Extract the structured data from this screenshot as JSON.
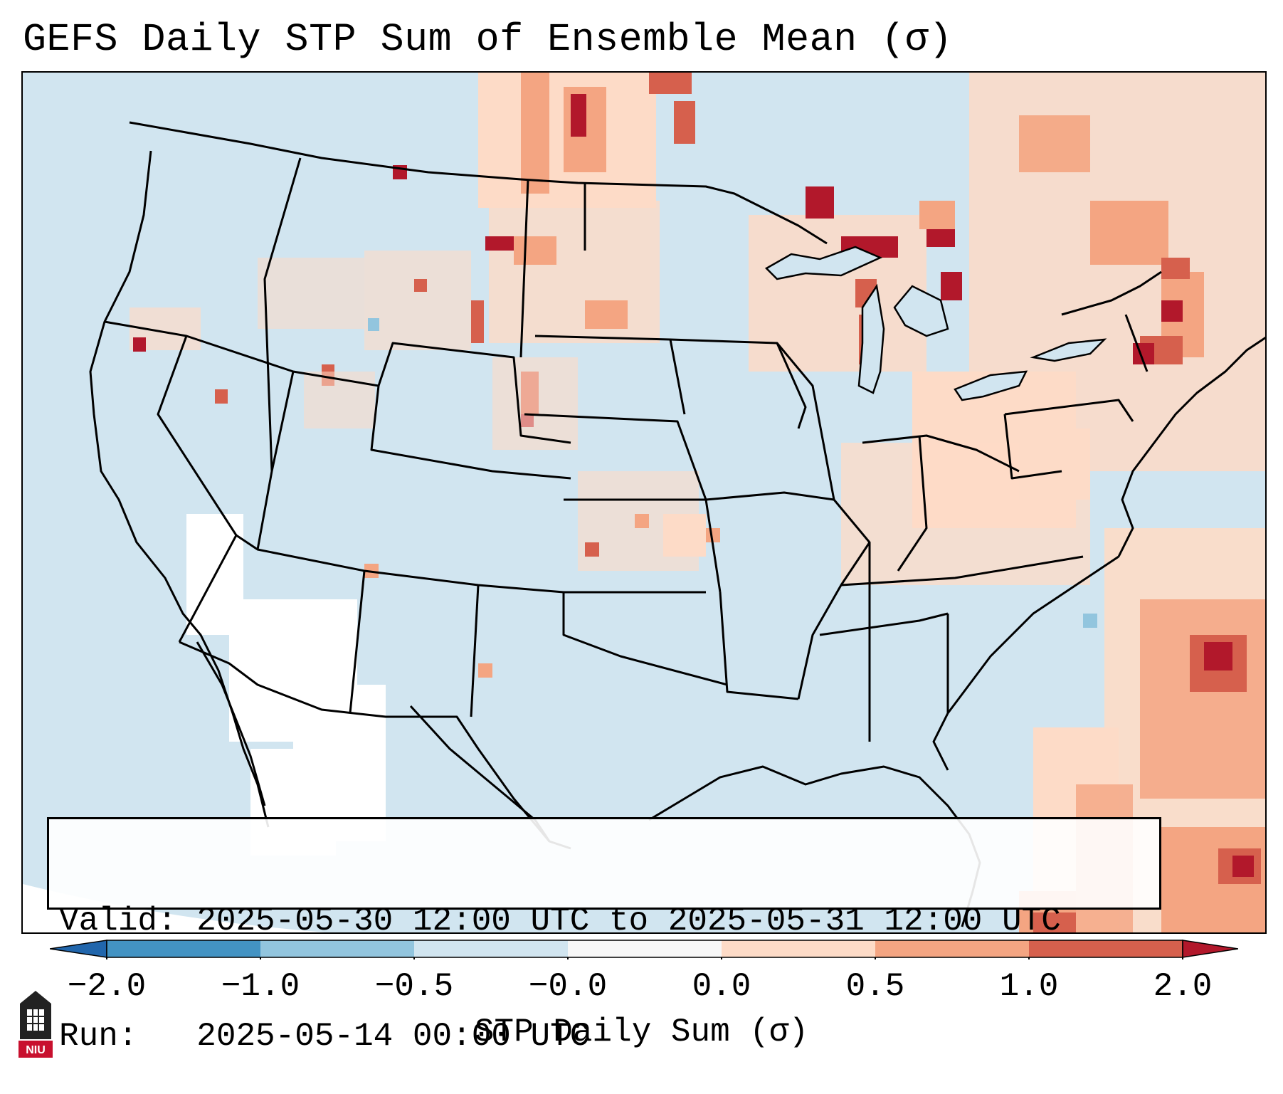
{
  "title": "GEFS Daily STP Sum of Ensemble Mean (σ)",
  "info": {
    "valid_line": "Valid: 2025-05-30 12:00 UTC to 2025-05-31 12:00 UTC",
    "run_line": "Run:   2025-05-14 00:00 UTC"
  },
  "colorbar": {
    "label": "STP Daily Sum (σ)",
    "ticks": [
      "−2.0",
      "−1.0",
      "−0.5",
      "−0.0",
      "0.0",
      "0.5",
      "1.0",
      "2.0"
    ],
    "bins": [
      {
        "range": "< -2.0",
        "color": "#2166ac"
      },
      {
        "range": "-2.0 to -1.0",
        "color": "#4393c3"
      },
      {
        "range": "-1.0 to -0.5",
        "color": "#92c5de"
      },
      {
        "range": "-0.5 to -0.0",
        "color": "#d1e5f0"
      },
      {
        "range": "-0.0 to 0.0",
        "color": "#f7f7f7"
      },
      {
        "range": "0.0 to 0.5",
        "color": "#fddbc7"
      },
      {
        "range": "0.5 to 1.0",
        "color": "#f4a582"
      },
      {
        "range": "1.0 to 2.0",
        "color": "#d6604d"
      },
      {
        "range": "> 2.0",
        "color": "#b2182b"
      }
    ]
  },
  "logo": {
    "text": "NIU",
    "icon": "niu-logo-icon"
  },
  "colors": {
    "ocean_bg": "#d1e5f0",
    "land_neutral": "#d1e5f0",
    "no_data": "#ffffff",
    "border": "#000000"
  }
}
